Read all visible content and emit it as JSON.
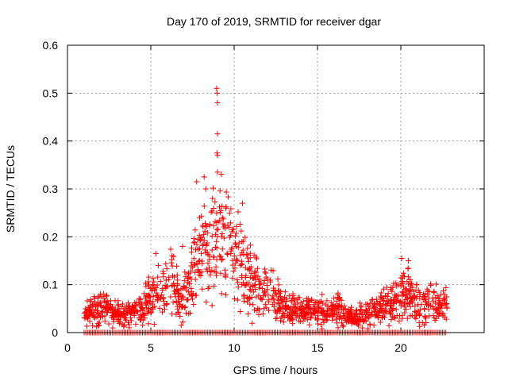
{
  "chart_data": {
    "type": "scatter",
    "title": "Day 170 of 2019, SRMTID for receiver dgar",
    "xlabel": "GPS time / hours",
    "ylabel": "SRMTID / TECUs",
    "xlim": [
      0,
      25
    ],
    "ylim": [
      0,
      0.6
    ],
    "xticks": [
      0,
      5,
      10,
      15,
      20
    ],
    "yticks": [
      0,
      0.1,
      0.2,
      0.3,
      0.4,
      0.5,
      0.6
    ],
    "xtick_labels": [
      "0",
      "5",
      "10",
      "15",
      "20"
    ],
    "ytick_labels": [
      "0",
      "0.1",
      "0.2",
      "0.3",
      "0.4",
      "0.5",
      "0.6"
    ],
    "grid": true,
    "marker": "+",
    "color": "#ff0000",
    "series": [
      {
        "name": "SRMTID",
        "x_range": [
          1.0,
          22.8
        ],
        "profile": {
          "x": [
            1.0,
            2.0,
            3.0,
            4.0,
            4.8,
            5.5,
            6.3,
            6.8,
            7.5,
            8.0,
            8.5,
            8.9,
            9.3,
            9.8,
            10.3,
            10.8,
            11.5,
            12.5,
            13.5,
            14.5,
            15.5,
            16.3,
            16.8,
            17.5,
            18.5,
            19.5,
            20.0,
            20.5,
            21.0,
            21.5,
            22.0,
            22.8
          ],
          "y": [
            0.035,
            0.05,
            0.04,
            0.04,
            0.06,
            0.085,
            0.1,
            0.06,
            0.12,
            0.17,
            0.18,
            0.2,
            0.19,
            0.18,
            0.16,
            0.12,
            0.09,
            0.07,
            0.05,
            0.045,
            0.045,
            0.05,
            0.03,
            0.035,
            0.045,
            0.06,
            0.09,
            0.075,
            0.06,
            0.06,
            0.06,
            0.055
          ]
        },
        "peaks": [
          {
            "x": 8.95,
            "y": 0.51
          },
          {
            "x": 8.98,
            "y": 0.5
          },
          {
            "x": 9.0,
            "y": 0.48
          },
          {
            "x": 9.0,
            "y": 0.415
          },
          {
            "x": 8.97,
            "y": 0.375
          },
          {
            "x": 9.0,
            "y": 0.37
          },
          {
            "x": 9.0,
            "y": 0.335
          },
          {
            "x": 7.75,
            "y": 0.315
          },
          {
            "x": 8.2,
            "y": 0.325
          },
          {
            "x": 8.3,
            "y": 0.3
          },
          {
            "x": 8.7,
            "y": 0.28
          },
          {
            "x": 10.5,
            "y": 0.27
          },
          {
            "x": 9.5,
            "y": 0.26
          },
          {
            "x": 20.05,
            "y": 0.155
          },
          {
            "x": 20.45,
            "y": 0.15
          },
          {
            "x": 5.3,
            "y": 0.165
          },
          {
            "x": 6.9,
            "y": 0.18
          }
        ],
        "baseline_y": 0.0
      }
    ]
  }
}
